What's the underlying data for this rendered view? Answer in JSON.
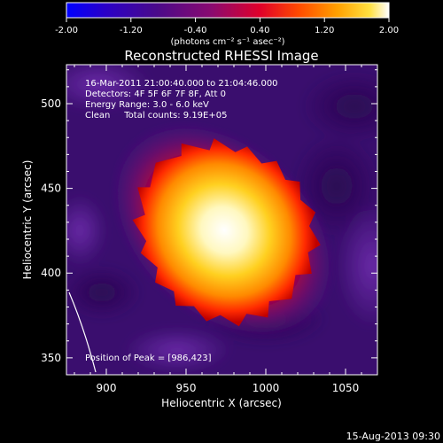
{
  "chart_data": {
    "type": "heatmap",
    "title": "Reconstructed RHESSI Image",
    "xlabel": "Heliocentric X (arcsec)",
    "ylabel": "Heliocentric Y (arcsec)",
    "xlim": [
      875,
      1070
    ],
    "ylim": [
      340,
      523
    ],
    "x_ticks": [
      900,
      950,
      1000,
      1050
    ],
    "y_ticks": [
      350,
      400,
      450,
      500
    ],
    "colorbar": {
      "range": [
        -2.0,
        2.0
      ],
      "ticks": [
        "-2.00",
        "-1.20",
        "-0.40",
        "0.40",
        "1.20",
        "2.00"
      ],
      "unit_label": "(photons cm⁻² s⁻¹ asec⁻²)"
    },
    "info_lines": [
      "16-Mar-2011 21:00:40.000 to 21:04:46.000",
      "Detectors: 4F 5F 6F 7F 8F, Att 0",
      "Energy Range: 3.0 - 6.0 keV",
      "Clean     Total counts: 9.19E+05"
    ],
    "peak_label": "Position of Peak = [986,423]",
    "peak_position": [
      986,
      423
    ],
    "timestamp": "15-Aug-2013 09:30",
    "colors": {
      "colormap": [
        "#0000ff",
        "#4a0a6e",
        "#4a1a8e",
        "#a0005a",
        "#ff0000",
        "#ff7a00",
        "#ffd000",
        "#ffffff"
      ],
      "limb": "#ffffff"
    }
  }
}
